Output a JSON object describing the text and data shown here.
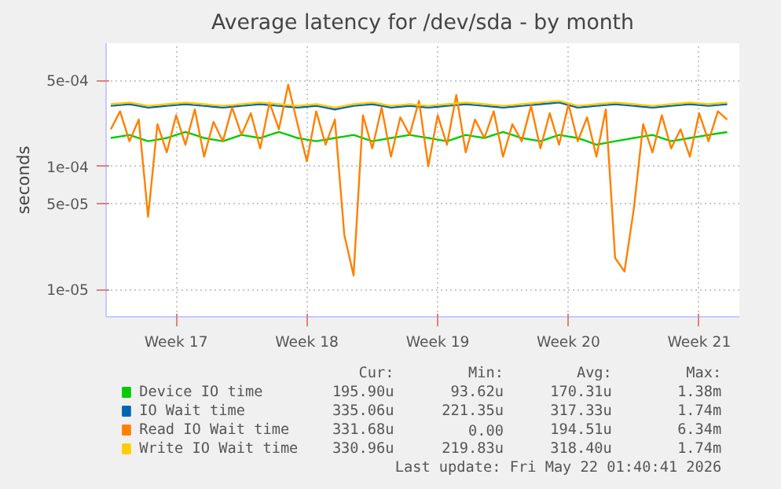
{
  "chart_data": {
    "type": "line",
    "title": "Average latency for /dev/sda - by month",
    "ylabel": "seconds",
    "log": "y",
    "categories": [
      null,
      null,
      null,
      null,
      null,
      null,
      null,
      "Week 17",
      null,
      null,
      null,
      null,
      null,
      null,
      null,
      null,
      null,
      null,
      null,
      null,
      null,
      "Week 18",
      null,
      null,
      null,
      null,
      null,
      null,
      null,
      null,
      null,
      null,
      null,
      null,
      null,
      "Week 19",
      null,
      null,
      null,
      null,
      null,
      null,
      null,
      null,
      null,
      null,
      null,
      null,
      null,
      "Week 20",
      null,
      null,
      null,
      null,
      null,
      null,
      null,
      null,
      null,
      null,
      null,
      null,
      null,
      "Week 21",
      null,
      null,
      null
    ],
    "ylim": [
      6e-06,
      0.001
    ],
    "yticks": [
      {
        "value": 1e-05,
        "label": "1e-05"
      },
      {
        "value": 5e-05,
        "label": "5e-05"
      },
      {
        "value": 0.0001,
        "label": "1e-04"
      },
      {
        "value": 0.0005,
        "label": "5e-04"
      }
    ],
    "grid": true,
    "legend": "bottom",
    "series": [
      {
        "name": "Device IO time",
        "color": "#00cc00",
        "values": [
          0.00017,
          0.000175,
          0.00018,
          0.00017,
          0.00016,
          0.000165,
          0.00017,
          0.00018,
          0.00019,
          0.00018,
          0.00017,
          0.000165,
          0.00016,
          0.00017,
          0.00018,
          0.000175,
          0.00017,
          0.00018,
          0.00019,
          0.00018,
          0.00017,
          0.000165,
          0.00016,
          0.000165,
          0.00017,
          0.000175,
          0.00018,
          0.00017,
          0.00016,
          0.000165,
          0.00017,
          0.000175,
          0.00018,
          0.000175,
          0.00017,
          0.000165,
          0.00016,
          0.00017,
          0.00018,
          0.000175,
          0.00017,
          0.00018,
          0.00019,
          0.00018,
          0.00017,
          0.000165,
          0.00016,
          0.00017,
          0.00018,
          0.000175,
          0.00017,
          0.00016,
          0.00015,
          0.000155,
          0.00016,
          0.000165,
          0.00017,
          0.000175,
          0.00018,
          0.00017,
          0.00016,
          0.000165,
          0.00017,
          0.000175,
          0.00018,
          0.000185,
          0.00019
        ]
      },
      {
        "name": "IO Wait time",
        "color": "#0066b3",
        "values": [
          0.00031,
          0.000315,
          0.00032,
          0.00031,
          0.0003,
          0.000305,
          0.00031,
          0.000315,
          0.00032,
          0.000315,
          0.00031,
          0.000305,
          0.0003,
          0.000305,
          0.00031,
          0.000315,
          0.00032,
          0.000315,
          0.00031,
          0.000305,
          0.0003,
          0.000305,
          0.00031,
          0.0003,
          0.00029,
          0.0003,
          0.00031,
          0.000315,
          0.00032,
          0.00031,
          0.0003,
          0.000305,
          0.00031,
          0.000305,
          0.0003,
          0.000305,
          0.00031,
          0.000315,
          0.00032,
          0.000315,
          0.00031,
          0.000305,
          0.0003,
          0.000305,
          0.00031,
          0.000315,
          0.00032,
          0.000325,
          0.00033,
          0.000315,
          0.0003,
          0.000305,
          0.00031,
          0.000315,
          0.00032,
          0.000315,
          0.00031,
          0.000305,
          0.0003,
          0.000305,
          0.00031,
          0.000315,
          0.00032,
          0.000315,
          0.00031,
          0.000315,
          0.00032
        ]
      },
      {
        "name": "Read IO Wait time",
        "color": "#ff8000",
        "values": [
          0.0002,
          0.00028,
          0.00016,
          0.00024,
          3.9e-05,
          0.00022,
          0.00013,
          0.00026,
          0.00015,
          0.00029,
          0.00012,
          0.00023,
          0.00016,
          0.0003,
          0.00018,
          0.00027,
          0.00014,
          0.00033,
          0.0002,
          0.00046,
          0.00022,
          0.00011,
          0.00028,
          0.00015,
          0.00024,
          2.8e-05,
          1.3e-05,
          0.00026,
          0.00014,
          0.0003,
          0.00012,
          0.00025,
          0.00018,
          0.00034,
          0.0001,
          0.00026,
          0.00015,
          0.00038,
          0.00013,
          0.00024,
          0.00017,
          0.00028,
          0.00012,
          0.00022,
          0.00016,
          0.00031,
          0.00014,
          0.00027,
          0.00015,
          0.00032,
          0.00016,
          0.00025,
          0.00012,
          0.00029,
          1.8e-05,
          1.4e-05,
          4.5e-05,
          0.00022,
          0.00013,
          0.00026,
          0.00014,
          0.0002,
          0.00012,
          0.00027,
          0.00016,
          0.00028,
          0.00024
        ]
      },
      {
        "name": "Write IO Wait time",
        "color": "#ffcc00",
        "values": [
          0.00032,
          0.000325,
          0.00033,
          0.00032,
          0.00031,
          0.000315,
          0.00032,
          0.000325,
          0.00033,
          0.000325,
          0.00032,
          0.000315,
          0.00031,
          0.000315,
          0.00032,
          0.000325,
          0.00033,
          0.000325,
          0.00032,
          0.000315,
          0.00031,
          0.000315,
          0.00032,
          0.00031,
          0.0003,
          0.00031,
          0.00032,
          0.000325,
          0.00033,
          0.00032,
          0.00031,
          0.000315,
          0.00032,
          0.000315,
          0.00031,
          0.000315,
          0.00032,
          0.000325,
          0.00033,
          0.000325,
          0.00032,
          0.000315,
          0.00031,
          0.000315,
          0.00032,
          0.000325,
          0.00033,
          0.000335,
          0.00034,
          0.000325,
          0.00031,
          0.000315,
          0.00032,
          0.000325,
          0.00033,
          0.000325,
          0.00032,
          0.000315,
          0.00031,
          0.000315,
          0.00032,
          0.000325,
          0.00033,
          0.000325,
          0.00032,
          0.000325,
          0.00033
        ]
      }
    ],
    "annotations": [
      "Cur:",
      "Min:",
      "Avg:",
      "Max:",
      "195.90u",
      "93.62u",
      "170.31u",
      "1.38m",
      "335.06u",
      "221.35u",
      "317.33u",
      "1.74m",
      "331.68u",
      "0.00",
      "194.51u",
      "6.34m",
      "330.96u",
      "219.83u",
      "318.40u",
      "1.74m",
      "Last update: Fri May 22 01:40:41 2026"
    ]
  }
}
